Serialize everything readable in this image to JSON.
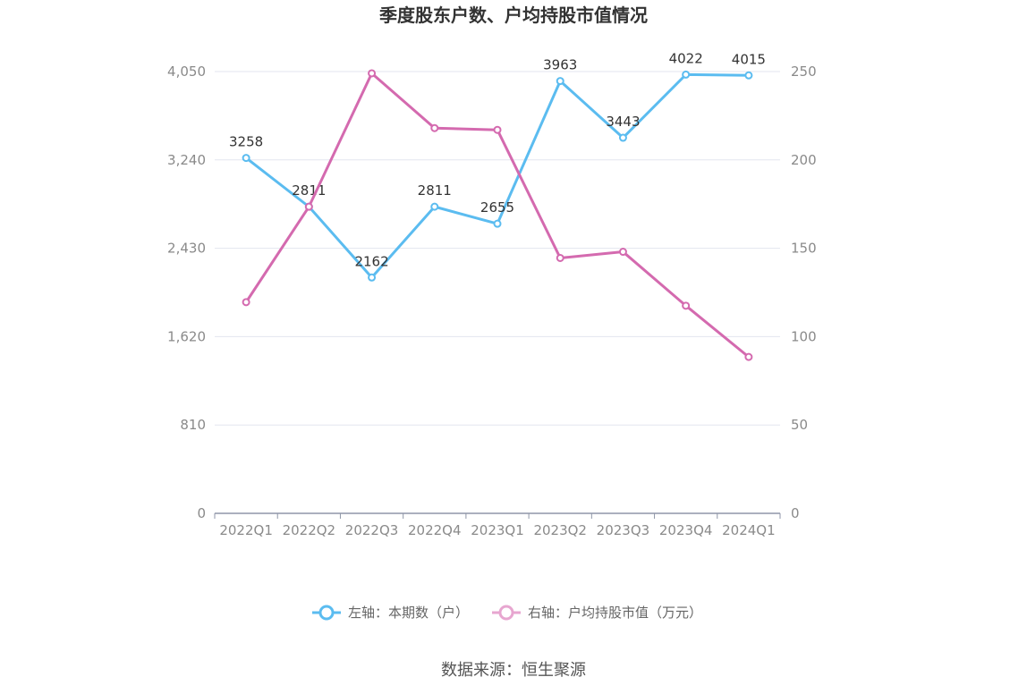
{
  "chart_data": {
    "type": "line",
    "title": "季度股东户数、户均持股市值情况",
    "categories": [
      "2022Q1",
      "2022Q2",
      "2022Q3",
      "2022Q4",
      "2023Q1",
      "2023Q2",
      "2023Q3",
      "2023Q4",
      "2024Q1"
    ],
    "left_axis": {
      "min": 0,
      "max": 4050,
      "ticks": [
        "0",
        "810",
        "1,620",
        "2,430",
        "3,240",
        "4,050"
      ],
      "tick_values": [
        0,
        810,
        1620,
        2430,
        3240,
        4050
      ]
    },
    "right_axis": {
      "min": 0,
      "max": 250,
      "ticks": [
        "0",
        "50",
        "100",
        "150",
        "200",
        "250"
      ],
      "tick_values": [
        0,
        50,
        100,
        150,
        200,
        250
      ]
    },
    "series": [
      {
        "name": "左轴：本期数（户）",
        "axis": "left",
        "color": "#5bbcf0",
        "values": [
          3258,
          2811,
          2162,
          2811,
          2655,
          3963,
          3443,
          4022,
          4015
        ],
        "labels": [
          "3258",
          "2811",
          "2162",
          "2811",
          "2655",
          "3963",
          "3443",
          "4022",
          "4015"
        ]
      },
      {
        "name": "右轴：户均持股市值（万元）",
        "axis": "right",
        "color": "#d46aaf",
        "values": [
          119.5,
          173.5,
          249,
          218,
          217,
          144.5,
          148,
          117.5,
          88.5
        ]
      }
    ],
    "grid": true,
    "legend_position": "bottom"
  },
  "source": "数据来源：恒生聚源"
}
